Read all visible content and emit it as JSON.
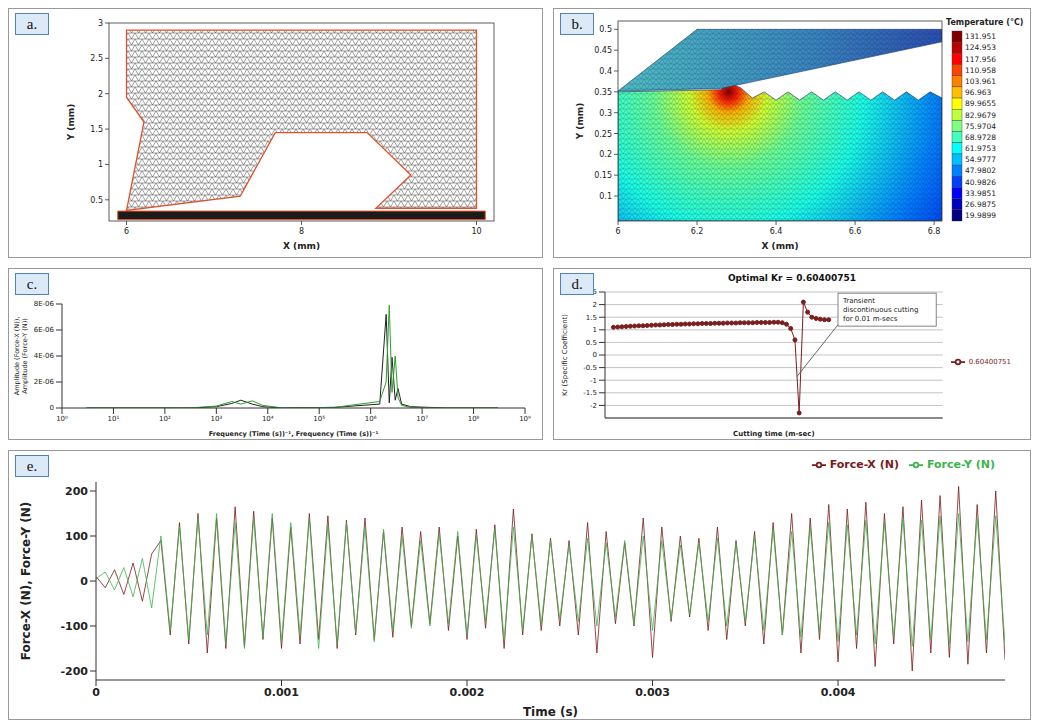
{
  "chart_data": [
    {
      "panel": "a.",
      "type": "mesh",
      "xlabel": "X (mm)",
      "ylabel": "Y (mm)",
      "xlim": [
        5.8,
        10.2
      ],
      "ylim": [
        0.2,
        3
      ],
      "xticks": [
        6,
        8,
        10
      ],
      "yticks": [
        0.5,
        1,
        1.5,
        2,
        2.5,
        3
      ],
      "tool_outline": {
        "x": [
          6.0,
          10.0,
          10.0,
          8.85,
          9.25,
          8.75,
          7.7,
          7.3,
          6.0,
          6.2,
          6.0
        ],
        "y": [
          2.9,
          2.9,
          0.38,
          0.38,
          0.85,
          1.45,
          1.45,
          0.55,
          0.35,
          1.6,
          1.95
        ]
      },
      "workpiece_outline": {
        "x": [
          5.9,
          10.1,
          10.1,
          5.9
        ],
        "y": [
          0.22,
          0.22,
          0.34,
          0.34
        ]
      }
    },
    {
      "panel": "b.",
      "type": "contour",
      "xlabel": "X (mm)",
      "ylabel": "Y (mm)",
      "xlim": [
        6,
        6.82
      ],
      "ylim": [
        0.04,
        0.52
      ],
      "xticks": [
        6,
        6.2,
        6.4,
        6.6,
        6.8
      ],
      "yticks": [
        0.1,
        0.15,
        0.2,
        0.25,
        0.3,
        0.35,
        0.4,
        0.45,
        0.5
      ],
      "tool_outline": {
        "x": [
          6,
          6.26,
          6.82,
          6.82,
          6.2
        ],
        "y": [
          0.352,
          0.358,
          0.47,
          0.5,
          0.5
        ]
      },
      "workpiece_outline": {
        "x": [
          6,
          6.82,
          6.82,
          6.79,
          6.76,
          6.73,
          6.7,
          6.67,
          6.64,
          6.61,
          6.58,
          6.55,
          6.52,
          6.49,
          6.46,
          6.43,
          6.4,
          6.37,
          6.34,
          6.31,
          6.28,
          6.26,
          6
        ],
        "y": [
          0.04,
          0.04,
          0.335,
          0.35,
          0.33,
          0.35,
          0.33,
          0.35,
          0.33,
          0.35,
          0.33,
          0.35,
          0.33,
          0.35,
          0.33,
          0.35,
          0.33,
          0.35,
          0.335,
          0.36,
          0.372,
          0.355,
          0.35
        ]
      },
      "hot_spot": {
        "x": 6.28,
        "y": 0.35
      },
      "colorbar": {
        "label": "Temperature (°C)",
        "range": [
          19.9899,
          131.951
        ],
        "ticks": [
          131.951,
          124.953,
          117.956,
          110.958,
          103.961,
          96.963,
          89.9655,
          82.9679,
          75.9704,
          68.9728,
          61.9753,
          54.9777,
          47.9802,
          40.9826,
          33.9851,
          26.9875,
          19.9899
        ]
      }
    },
    {
      "panel": "c.",
      "type": "line",
      "xlabel": "Frequency (Time (s))⁻¹, Frequency (Time (s))⁻¹",
      "ylabel": "Amplitude (Force-X (N)), Amplitude (Force-Y (N))",
      "log": "x",
      "grid": false,
      "xlim": [
        1,
        1000000000
      ],
      "ylim": [
        0,
        8e-06
      ],
      "xticks": [
        {
          "value": 1,
          "label": "10⁰"
        },
        {
          "value": 10,
          "label": "10¹"
        },
        {
          "value": 100,
          "label": "10²"
        },
        {
          "value": 1000,
          "label": "10³"
        },
        {
          "value": 10000,
          "label": "10⁴"
        },
        {
          "value": 100000,
          "label": "10⁵"
        },
        {
          "value": 1000000,
          "label": "10⁶"
        },
        {
          "value": 10000000,
          "label": "10⁷"
        },
        {
          "value": 100000000,
          "label": "10⁸"
        },
        {
          "value": 1000000000,
          "label": "10⁹"
        }
      ],
      "yticks": [
        0,
        {
          "value": 2e-06,
          "label": "2E-06"
        },
        {
          "value": 4e-06,
          "label": "4E-06"
        },
        {
          "value": 6e-06,
          "label": "6E-06"
        },
        {
          "value": 8e-06,
          "label": "8E-06"
        }
      ],
      "x": [
        3,
        30,
        300,
        1000,
        2000,
        3000,
        5000,
        8000,
        20000,
        200000,
        1500000,
        2000000,
        2300000,
        2600000,
        3000000,
        3400000,
        4000000,
        6000000,
        30000000,
        300000000
      ],
      "series": [
        {
          "color": "#222222",
          "values": [
            0,
            0,
            0,
            1e-07,
            3.5e-07,
            6e-07,
            3e-07,
            1e-07,
            0,
            5e-08,
            3e-07,
            7.2e-06,
            4e-07,
            3.9e-06,
            6e-07,
            1.5e-06,
            3e-07,
            1e-07,
            0,
            0
          ]
        },
        {
          "color": "#2ca02c",
          "values": [
            0,
            0,
            0,
            1.5e-07,
            5e-07,
            3e-07,
            5.5e-07,
            2e-07,
            0,
            5e-08,
            5e-07,
            2e-06,
            7.9e-06,
            1.2e-06,
            4e-06,
            8e-07,
            2e-07,
            5e-08,
            0,
            0
          ]
        }
      ]
    },
    {
      "panel": "d.",
      "type": "line",
      "title": "Optimal Kr = 0.60400751",
      "xlabel": "Cutting time (m-sec)",
      "ylabel": "Kr (Specific Coefficient)",
      "annotation": "Transient discontinuous cutting for 0.01 m-secs",
      "grid": true,
      "tick_labels": "y",
      "legend": "right",
      "xlim": [
        0,
        80
      ],
      "ylim": [
        -2.5,
        2.5
      ],
      "yticks": [
        -2,
        -1.5,
        -1,
        -0.5,
        0,
        0.5,
        1,
        1.5,
        2,
        2.5
      ],
      "x": [
        2,
        3,
        4,
        5,
        6,
        7,
        8,
        9,
        10,
        11,
        12,
        13,
        14,
        15,
        16,
        17,
        18,
        19,
        20,
        21,
        22,
        23,
        24,
        25,
        26,
        27,
        28,
        29,
        30,
        31,
        32,
        33,
        34,
        35,
        36,
        37,
        38,
        39,
        40,
        41,
        42,
        43,
        44,
        45,
        46,
        47,
        48,
        49,
        50,
        51,
        52,
        53
      ],
      "series": [
        {
          "name": "0.60400751",
          "color": "#7a1f1f",
          "marker": "circle",
          "values": [
            1.1,
            1.11,
            1.12,
            1.13,
            1.14,
            1.15,
            1.16,
            1.16,
            1.17,
            1.18,
            1.19,
            1.19,
            1.2,
            1.21,
            1.21,
            1.22,
            1.22,
            1.23,
            1.23,
            1.24,
            1.24,
            1.25,
            1.25,
            1.25,
            1.26,
            1.26,
            1.26,
            1.27,
            1.27,
            1.27,
            1.28,
            1.28,
            1.28,
            1.28,
            1.29,
            1.29,
            1.29,
            1.29,
            1.3,
            1.3,
            1.28,
            1.22,
            1.05,
            0.6,
            -2.3,
            2.1,
            1.7,
            1.5,
            1.45,
            1.42,
            1.4,
            1.4
          ]
        }
      ]
    },
    {
      "panel": "e.",
      "type": "line",
      "xlabel": "Time (s)",
      "ylabel": "Force-X (N), Force-Y (N)",
      "grid": false,
      "legend": "top-right",
      "xlim": [
        0,
        0.0049
      ],
      "ylim": [
        -220,
        220
      ],
      "xticks": [
        0,
        0.001,
        0.002,
        0.003,
        0.004
      ],
      "yticks": [
        -200,
        -100,
        0,
        100,
        200
      ],
      "x": [
        0,
        5e-05,
        0.0001,
        0.00015,
        0.0002,
        0.00025,
        0.0003,
        0.00035,
        0.0004,
        0.00045,
        0.0005,
        0.00055,
        0.0006,
        0.00065,
        0.0007,
        0.00075,
        0.0008,
        0.00085,
        0.0009,
        0.00095,
        0.001,
        0.00105,
        0.0011,
        0.00115,
        0.0012,
        0.00125,
        0.0013,
        0.00135,
        0.0014,
        0.00145,
        0.0015,
        0.00155,
        0.0016,
        0.00165,
        0.0017,
        0.00175,
        0.0018,
        0.00185,
        0.0019,
        0.00195,
        0.002,
        0.00205,
        0.0021,
        0.00215,
        0.0022,
        0.00225,
        0.0023,
        0.00235,
        0.0024,
        0.00245,
        0.0025,
        0.00255,
        0.0026,
        0.00265,
        0.0027,
        0.00275,
        0.0028,
        0.00285,
        0.0029,
        0.00295,
        0.003,
        0.00305,
        0.0031,
        0.00315,
        0.0032,
        0.00325,
        0.0033,
        0.00335,
        0.0034,
        0.00345,
        0.0035,
        0.00355,
        0.0036,
        0.00365,
        0.0037,
        0.00375,
        0.0038,
        0.00385,
        0.0039,
        0.00395,
        0.004,
        0.00405,
        0.0041,
        0.00415,
        0.0042,
        0.00425,
        0.0043,
        0.00435,
        0.0044,
        0.00445,
        0.0045,
        0.00455,
        0.0046,
        0.00465,
        0.0047,
        0.00475,
        0.0048,
        0.00485,
        0.0049
      ],
      "series": [
        {
          "name": "Force-X (N)",
          "color": "#7a1a1a",
          "values": [
            10,
            -15,
            25,
            -30,
            40,
            -45,
            60,
            90,
            -120,
            130,
            -140,
            150,
            -160,
            140,
            -150,
            165,
            -145,
            155,
            -130,
            140,
            -150,
            120,
            -140,
            150,
            -130,
            145,
            -150,
            135,
            -120,
            140,
            -130,
            110,
            -125,
            120,
            -100,
            110,
            -95,
            120,
            -110,
            100,
            -130,
            115,
            -105,
            125,
            -150,
            160,
            -120,
            105,
            -110,
            95,
            -100,
            90,
            -120,
            130,
            -160,
            110,
            -95,
            85,
            -100,
            140,
            -170,
            120,
            -90,
            100,
            -80,
            95,
            -110,
            120,
            -130,
            90,
            -100,
            110,
            -140,
            130,
            -120,
            150,
            -160,
            140,
            -130,
            170,
            -180,
            160,
            -150,
            175,
            -190,
            150,
            -140,
            165,
            -200,
            180,
            -160,
            190,
            -170,
            210,
            -185,
            170,
            -160,
            200,
            -175
          ]
        },
        {
          "name": "Force-Y (N)",
          "color": "#3cb44b",
          "values": [
            5,
            20,
            -20,
            30,
            -35,
            50,
            -60,
            100,
            -110,
            120,
            -130,
            140,
            -120,
            150,
            -140,
            130,
            -150,
            140,
            -125,
            150,
            -135,
            130,
            -120,
            140,
            -150,
            125,
            -140,
            130,
            -115,
            120,
            -135,
            115,
            -110,
            100,
            -105,
            90,
            -100,
            105,
            -95,
            110,
            -120,
            100,
            -90,
            115,
            -130,
            120,
            -110,
            100,
            -95,
            90,
            -85,
            80,
            -90,
            95,
            -100,
            85,
            -80,
            90,
            -95,
            100,
            -110,
            90,
            -85,
            80,
            -75,
            85,
            -90,
            95,
            -100,
            85,
            -90,
            100,
            -110,
            115,
            -120,
            110,
            -125,
            120,
            -115,
            130,
            -135,
            125,
            -120,
            135,
            -140,
            130,
            -125,
            140,
            -145,
            135,
            -130,
            145,
            -140,
            150,
            -135,
            140,
            -130,
            145,
            -140
          ]
        }
      ]
    }
  ]
}
